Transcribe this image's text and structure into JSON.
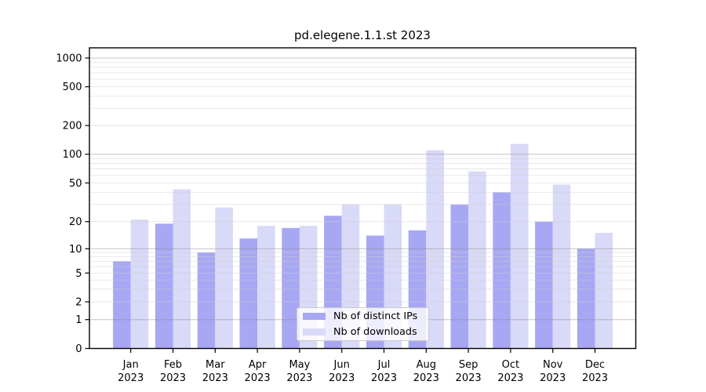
{
  "title": "pd.elegene.1.1.st 2023",
  "chart_data": {
    "type": "bar",
    "title": "pd.elegene.1.1.st 2023",
    "categories": [
      "Jan",
      "Feb",
      "Mar",
      "Apr",
      "May",
      "Jun",
      "Jul",
      "Aug",
      "Sep",
      "Oct",
      "Nov",
      "Dec"
    ],
    "year": "2023",
    "series": [
      {
        "name": "Nb of distinct IPs",
        "color": "#a7a7f4",
        "values": [
          7,
          19,
          9,
          13,
          17,
          23,
          14,
          16,
          30,
          40,
          20,
          10
        ]
      },
      {
        "name": "Nb of downloads",
        "color": "#d9d9f8",
        "values": [
          21,
          43,
          28,
          18,
          18,
          30,
          30,
          110,
          66,
          128,
          48,
          15
        ]
      }
    ],
    "xlabel": "",
    "ylabel": "",
    "y_ticks": [
      0,
      1,
      2,
      5,
      10,
      20,
      50,
      100,
      200,
      500,
      1000
    ],
    "ylim": [
      0,
      1300
    ],
    "scale": "symlog",
    "grid": true,
    "grid_major_at": [
      1,
      10,
      100,
      1000
    ],
    "legend_position": "lower-center-inside"
  },
  "colors": {
    "axis": "#000000",
    "grid_major": "#bcbcbc",
    "grid_minor": "#e6e6e6",
    "background": "#ffffff",
    "legend_border": "#cccccc"
  }
}
